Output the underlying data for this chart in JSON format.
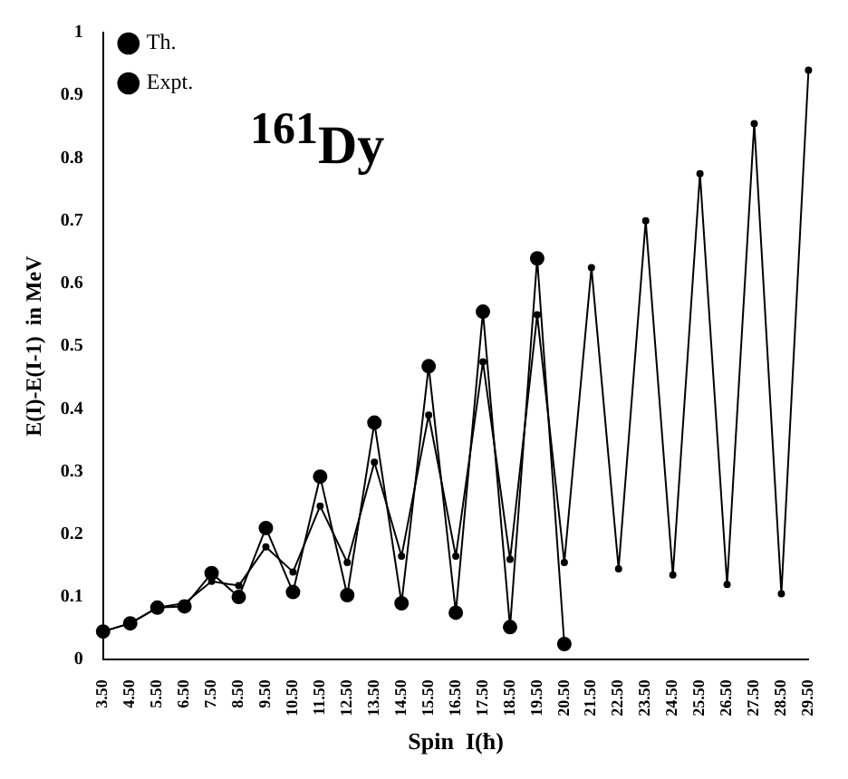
{
  "chart_data": {
    "type": "line",
    "title": "$^{161}$Dy",
    "xlabel": "Spin  I(ħ)",
    "ylabel": "E(I)-E(I-1)  in MeV",
    "categories": [
      "3.50",
      "4.50",
      "5.50",
      "6.50",
      "7.50",
      "8.50",
      "9.50",
      "10.50",
      "11.50",
      "12.50",
      "13.50",
      "14.50",
      "15.50",
      "16.50",
      "17.50",
      "18.50",
      "19.50",
      "20.50",
      "21.50",
      "22.50",
      "23.50",
      "24.50",
      "25.50",
      "26.50",
      "27.50",
      "28.50",
      "29.50"
    ],
    "series": [
      {
        "name": "Th.",
        "color": "#000000",
        "marker": "circle",
        "values": [
          0.045,
          0.058,
          0.083,
          0.09,
          0.125,
          0.118,
          0.18,
          0.14,
          0.245,
          0.155,
          0.315,
          0.165,
          0.39,
          0.165,
          0.475,
          0.16,
          0.55,
          0.155,
          0.625,
          0.145,
          0.7,
          0.135,
          0.775,
          0.12,
          0.855,
          0.105,
          0.94
        ]
      },
      {
        "name": "Expt.",
        "color": "#000000",
        "marker": "circle",
        "values": [
          0.045,
          0.058,
          0.083,
          0.085,
          0.138,
          0.1,
          0.21,
          0.108,
          0.292,
          0.103,
          0.378,
          0.09,
          0.468,
          0.075,
          0.555,
          0.052,
          0.64,
          0.025,
          null,
          null,
          null,
          null,
          null,
          null,
          null,
          null,
          null
        ]
      }
    ],
    "ylim": [
      0,
      1
    ],
    "yticks": [
      0,
      0.1,
      0.2,
      0.3,
      0.4,
      0.5,
      0.6,
      0.7,
      0.8,
      0.9,
      1
    ],
    "grid": false,
    "legend": "top left",
    "line_style": "solid"
  }
}
